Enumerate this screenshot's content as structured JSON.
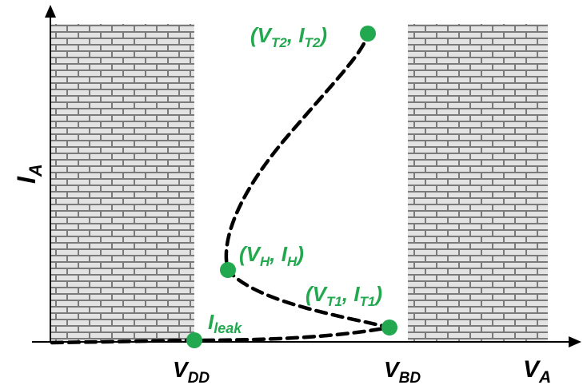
{
  "colors": {
    "point": "#22a94f",
    "curve": "#000000",
    "brick_bg": "#7a7a7a",
    "brick_mortar": "#e6e6e6"
  },
  "axes": {
    "y_label": {
      "main": "I",
      "sub": "A"
    },
    "x_label": {
      "main": "V",
      "sub": "A"
    },
    "vdd": {
      "main": "V",
      "sub": "DD"
    },
    "vbd": {
      "main": "V",
      "sub": "BD"
    }
  },
  "points": {
    "t2": {
      "open": "(",
      "v": "V",
      "v_sub": "T2",
      "sep": ", ",
      "i": "I",
      "i_sub": "T2",
      "close": ")"
    },
    "h": {
      "open": "(",
      "v": "V",
      "v_sub": "H",
      "sep": ", ",
      "i": "I",
      "i_sub": "H",
      "close": ")"
    },
    "t1": {
      "open": "(",
      "v": "V",
      "v_sub": "T1",
      "sep": ", ",
      "i": "I",
      "i_sub": "T1",
      "close": ")"
    },
    "leak": {
      "main": "I",
      "sub": "leak"
    }
  },
  "regions": [
    "brick-wall-left",
    "brick-wall-right"
  ]
}
